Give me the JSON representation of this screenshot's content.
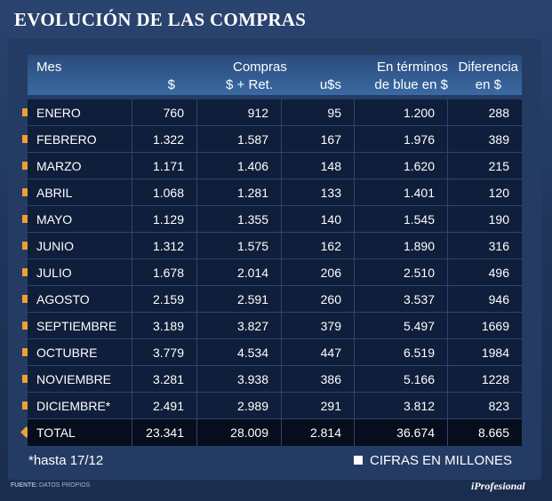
{
  "title": "EVOLUCIÓN DE LAS COMPRAS",
  "headers": {
    "mes": "Mes",
    "compras": "Compras",
    "peso": "$",
    "peso_ret": "$ + Ret.",
    "usd": "u$s",
    "blue_line1": "En términos",
    "blue_line2": "de blue en $",
    "diff_line1": "Diferencia",
    "diff_line2": "en $"
  },
  "chart_data": {
    "type": "table",
    "title": "EVOLUCIÓN DE LAS COMPRAS",
    "columns": [
      "Mes",
      "$",
      "$ + Ret.",
      "u$s",
      "En términos de blue en $",
      "Diferencia en $"
    ],
    "rows": [
      [
        "ENERO",
        "760",
        "912",
        "95",
        "1.200",
        "288"
      ],
      [
        "FEBRERO",
        "1.322",
        "1.587",
        "167",
        "1.976",
        "389"
      ],
      [
        "MARZO",
        "1.171",
        "1.406",
        "148",
        "1.620",
        "215"
      ],
      [
        "ABRIL",
        "1.068",
        "1.281",
        "133",
        "1.401",
        "120"
      ],
      [
        "MAYO",
        "1.129",
        "1.355",
        "140",
        "1.545",
        "190"
      ],
      [
        "JUNIO",
        "1.312",
        "1.575",
        "162",
        "1.890",
        "316"
      ],
      [
        "JULIO",
        "1.678",
        "2.014",
        "206",
        "2.510",
        "496"
      ],
      [
        "AGOSTO",
        "2.159",
        "2.591",
        "260",
        "3.537",
        "946"
      ],
      [
        "SEPTIEMBRE",
        "3.189",
        "3.827",
        "379",
        "5.497",
        "1669"
      ],
      [
        "OCTUBRE",
        "3.779",
        "4.534",
        "447",
        "6.519",
        "1984"
      ],
      [
        "NOVIEMBRE",
        "3.281",
        "3.938",
        "386",
        "5.166",
        "1228"
      ],
      [
        "DICIEMBRE*",
        "2.491",
        "2.989",
        "291",
        "3.812",
        "823"
      ]
    ],
    "total": [
      "TOTAL",
      "23.341",
      "28.009",
      "2.814",
      "36.674",
      "8.665"
    ]
  },
  "footnote": "*hasta 17/12",
  "units": "CIFRAS EN MILLONES",
  "source_label": "FUENTE:",
  "source_value": "DATOS PROPIOS",
  "brand": "iProfesional",
  "colors": {
    "bullet": "#f0a030",
    "row_bg": "#0f1e3a",
    "header_bg": "#3a6aa3"
  }
}
